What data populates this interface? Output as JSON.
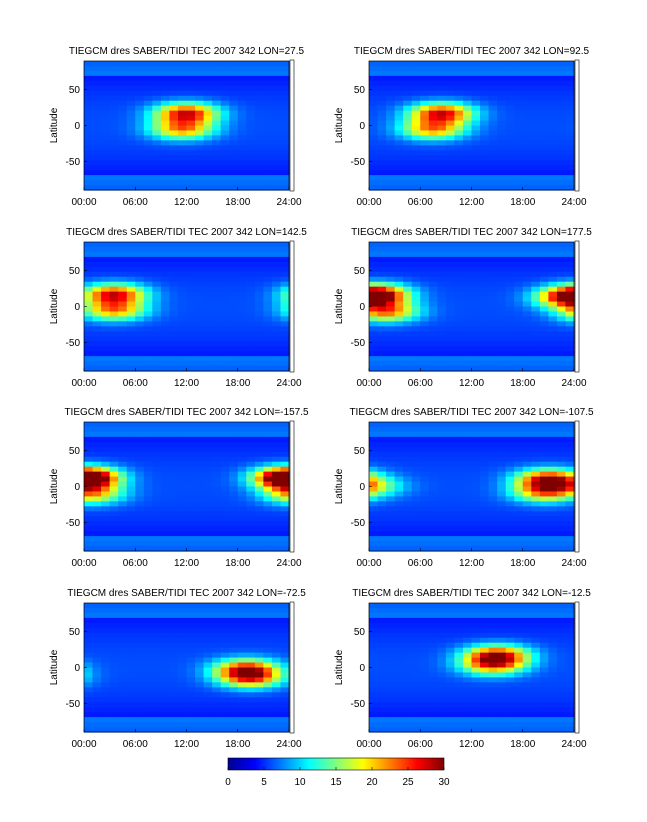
{
  "colormap": "jet",
  "colorbar": {
    "ticks": [
      "0",
      "5",
      "10",
      "15",
      "20",
      "25",
      "30"
    ],
    "range": [
      0,
      30
    ]
  },
  "chart_data": [
    {
      "type": "heatmap",
      "title": "TIEGCM dres SABER/TIDI TEC 2007 342 LON=27.5",
      "ylabel": "Latitude",
      "xticks": [
        "00:00",
        "06:00",
        "12:00",
        "18:00",
        "24:00"
      ],
      "yticks": [
        "50",
        "0",
        "-50"
      ],
      "xlim": [
        0,
        24
      ],
      "ylim": [
        -90,
        90
      ],
      "peaks": [
        {
          "local_time": 12.0,
          "lat": 17,
          "value": 25
        },
        {
          "local_time": 11.5,
          "lat": -5,
          "value": 20
        }
      ]
    },
    {
      "type": "heatmap",
      "title": "TIEGCM dres SABER/TIDI TEC 2007 342 LON=92.5",
      "ylabel": "Latitude",
      "xticks": [
        "00:00",
        "06:00",
        "12:00",
        "18:00",
        "24:00"
      ],
      "yticks": [
        "50",
        "0",
        "-50"
      ],
      "xlim": [
        0,
        24
      ],
      "ylim": [
        -90,
        90
      ],
      "peaks": [
        {
          "local_time": 8.5,
          "lat": 17,
          "value": 25
        },
        {
          "local_time": 7.5,
          "lat": -5,
          "value": 20
        }
      ]
    },
    {
      "type": "heatmap",
      "title": "TIEGCM dres SABER/TIDI TEC 2007 342 LON=142.5",
      "ylabel": "Latitude",
      "xticks": [
        "00:00",
        "06:00",
        "12:00",
        "18:00",
        "24:00"
      ],
      "yticks": [
        "50",
        "0",
        "-50"
      ],
      "xlim": [
        0,
        24
      ],
      "ylim": [
        -90,
        90
      ],
      "peaks": [
        {
          "local_time": 3.5,
          "lat": 17,
          "value": 25
        },
        {
          "local_time": 3.5,
          "lat": -5,
          "value": 20
        }
      ]
    },
    {
      "type": "heatmap",
      "title": "TIEGCM dres SABER/TIDI TEC 2007 342 LON=177.5",
      "ylabel": "Latitude",
      "xticks": [
        "00:00",
        "06:00",
        "12:00",
        "18:00",
        "24:00"
      ],
      "yticks": [
        "50",
        "0",
        "-50"
      ],
      "xlim": [
        0,
        24
      ],
      "ylim": [
        -90,
        90
      ],
      "peaks": [
        {
          "local_time": 1.0,
          "lat": 17,
          "value": 25
        },
        {
          "local_time": 2.0,
          "lat": -7,
          "value": 21
        },
        {
          "local_time": 23.0,
          "lat": 12,
          "value": 18
        }
      ]
    },
    {
      "type": "heatmap",
      "title": "TIEGCM dres SABER/TIDI TEC 2007 342 LON=-157.5",
      "ylabel": "Latitude",
      "xticks": [
        "00:00",
        "06:00",
        "12:00",
        "18:00",
        "24:00"
      ],
      "yticks": [
        "50",
        "0",
        "-50"
      ],
      "xlim": [
        0,
        24
      ],
      "ylim": [
        -90,
        90
      ],
      "peaks": [
        {
          "local_time": 0.3,
          "lat": 12,
          "value": 23
        },
        {
          "local_time": 23.7,
          "lat": 12,
          "value": 22
        },
        {
          "local_time": 0.8,
          "lat": -10,
          "value": 19
        }
      ]
    },
    {
      "type": "heatmap",
      "title": "TIEGCM dres SABER/TIDI TEC 2007 342 LON=-107.5",
      "ylabel": "Latitude",
      "xticks": [
        "00:00",
        "06:00",
        "12:00",
        "18:00",
        "24:00"
      ],
      "yticks": [
        "50",
        "0",
        "-50"
      ],
      "xlim": [
        0,
        24
      ],
      "ylim": [
        -90,
        90
      ],
      "peaks": [
        {
          "local_time": 21.0,
          "lat": 10,
          "value": 25
        },
        {
          "local_time": 20.5,
          "lat": -8,
          "value": 19
        },
        {
          "local_time": 0.5,
          "lat": 0,
          "value": 12
        }
      ]
    },
    {
      "type": "heatmap",
      "title": "TIEGCM dres SABER/TIDI TEC 2007 342 LON=-72.5",
      "ylabel": "Latitude",
      "xticks": [
        "00:00",
        "06:00",
        "12:00",
        "18:00",
        "24:00"
      ],
      "yticks": [
        "50",
        "0",
        "-50"
      ],
      "xlim": [
        0,
        24
      ],
      "ylim": [
        -90,
        90
      ],
      "peaks": [
        {
          "local_time": 19.0,
          "lat": -2,
          "value": 22
        },
        {
          "local_time": 19.5,
          "lat": -15,
          "value": 20
        }
      ]
    },
    {
      "type": "heatmap",
      "title": "TIEGCM dres SABER/TIDI TEC 2007 342 LON=-12.5",
      "ylabel": "Latitude",
      "xticks": [
        "00:00",
        "06:00",
        "12:00",
        "18:00",
        "24:00"
      ],
      "yticks": [
        "50",
        "0",
        "-50"
      ],
      "xlim": [
        0,
        24
      ],
      "ylim": [
        -90,
        90
      ],
      "peaks": [
        {
          "local_time": 15.0,
          "lat": 17,
          "value": 24
        },
        {
          "local_time": 14.5,
          "lat": 3,
          "value": 19
        }
      ]
    }
  ]
}
